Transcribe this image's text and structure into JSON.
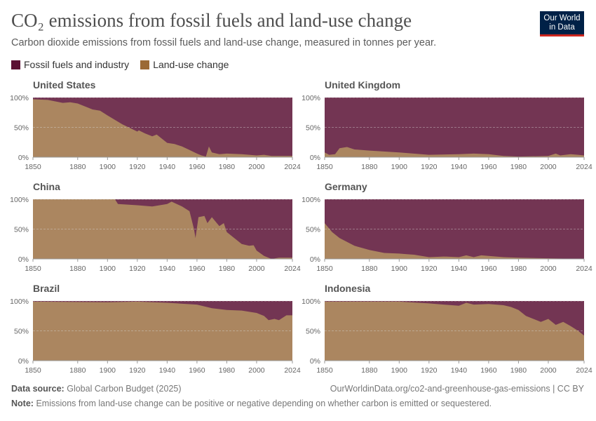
{
  "header": {
    "title": "CO₂ emissions from fossil fuels and land-use change",
    "subtitle": "Carbon dioxide emissions from fossil fuels and land-use change, measured in tonnes per year.",
    "logo": "Our World in Data"
  },
  "footer": {
    "source_label": "Data source:",
    "source": "Global Carbon Budget (2025)",
    "url": "OurWorldinData.org/co2-and-greenhouse-gas-emissions | CC BY",
    "note_label": "Note:",
    "note": "Emissions from land-use change can be positive or negative depending on whether carbon is emitted or sequestered."
  },
  "chart_data": {
    "type": "area",
    "stacked": "percent",
    "xlim": [
      1850,
      2024
    ],
    "ylim": [
      0,
      100
    ],
    "x_ticks": [
      "1850",
      "1880",
      "1900",
      "1920",
      "1940",
      "1960",
      "1980",
      "2000",
      "2024"
    ],
    "y_ticks": [
      "0%",
      "50%",
      "100%"
    ],
    "legend": [
      {
        "name": "Fossil fuels and industry",
        "color": "#5b1033",
        "area_color": "#733553"
      },
      {
        "name": "Land-use change",
        "color": "#9b6a35",
        "area_color": "#ab8660"
      }
    ],
    "legend_placement": "top-left",
    "grid": true,
    "note": "values are land-use change share (%); fossil fuels share is the remainder",
    "panels": [
      {
        "country": "United States",
        "land_use_share": [
          [
            1850,
            97
          ],
          [
            1860,
            96
          ],
          [
            1870,
            91
          ],
          [
            1875,
            92
          ],
          [
            1880,
            90
          ],
          [
            1890,
            80
          ],
          [
            1895,
            78
          ],
          [
            1900,
            70
          ],
          [
            1910,
            55
          ],
          [
            1920,
            43
          ],
          [
            1921,
            45
          ],
          [
            1925,
            40
          ],
          [
            1930,
            35
          ],
          [
            1933,
            38
          ],
          [
            1940,
            24
          ],
          [
            1945,
            22
          ],
          [
            1950,
            18
          ],
          [
            1955,
            12
          ],
          [
            1960,
            6
          ],
          [
            1963,
            3
          ],
          [
            1966,
            1
          ],
          [
            1968,
            18
          ],
          [
            1970,
            8
          ],
          [
            1975,
            5
          ],
          [
            1980,
            6
          ],
          [
            1990,
            5
          ],
          [
            2000,
            3
          ],
          [
            2005,
            4
          ],
          [
            2010,
            2
          ],
          [
            2024,
            2
          ]
        ]
      },
      {
        "country": "United Kingdom",
        "land_use_share": [
          [
            1850,
            8
          ],
          [
            1853,
            4
          ],
          [
            1857,
            5
          ],
          [
            1860,
            15
          ],
          [
            1865,
            17
          ],
          [
            1870,
            13
          ],
          [
            1880,
            11
          ],
          [
            1900,
            8
          ],
          [
            1920,
            4
          ],
          [
            1940,
            5
          ],
          [
            1950,
            6
          ],
          [
            1960,
            5
          ],
          [
            1970,
            2
          ],
          [
            1980,
            1
          ],
          [
            2000,
            2
          ],
          [
            2005,
            6
          ],
          [
            2008,
            3
          ],
          [
            2015,
            5
          ],
          [
            2020,
            4
          ],
          [
            2024,
            3
          ]
        ]
      },
      {
        "country": "China",
        "land_use_share": [
          [
            1850,
            100
          ],
          [
            1905,
            100
          ],
          [
            1907,
            92
          ],
          [
            1920,
            90
          ],
          [
            1930,
            88
          ],
          [
            1940,
            92
          ],
          [
            1943,
            96
          ],
          [
            1950,
            88
          ],
          [
            1955,
            80
          ],
          [
            1958,
            50
          ],
          [
            1959,
            35
          ],
          [
            1961,
            70
          ],
          [
            1965,
            72
          ],
          [
            1967,
            60
          ],
          [
            1970,
            70
          ],
          [
            1975,
            55
          ],
          [
            1978,
            60
          ],
          [
            1980,
            45
          ],
          [
            1985,
            35
          ],
          [
            1990,
            25
          ],
          [
            1995,
            22
          ],
          [
            1998,
            23
          ],
          [
            2000,
            14
          ],
          [
            2005,
            5
          ],
          [
            2010,
            0
          ],
          [
            2015,
            2
          ],
          [
            2024,
            2
          ]
        ]
      },
      {
        "country": "Germany",
        "land_use_share": [
          [
            1850,
            60
          ],
          [
            1855,
            45
          ],
          [
            1860,
            35
          ],
          [
            1870,
            22
          ],
          [
            1880,
            15
          ],
          [
            1890,
            10
          ],
          [
            1900,
            9
          ],
          [
            1905,
            8
          ],
          [
            1910,
            7
          ],
          [
            1920,
            3
          ],
          [
            1930,
            4
          ],
          [
            1940,
            3
          ],
          [
            1945,
            6
          ],
          [
            1950,
            3
          ],
          [
            1955,
            6
          ],
          [
            1960,
            5
          ],
          [
            1970,
            3
          ],
          [
            1980,
            2
          ],
          [
            2000,
            1
          ],
          [
            2024,
            0
          ]
        ]
      },
      {
        "country": "Brazil",
        "land_use_share": [
          [
            1850,
            99
          ],
          [
            1900,
            98
          ],
          [
            1920,
            99
          ],
          [
            1940,
            97
          ],
          [
            1960,
            94
          ],
          [
            1970,
            88
          ],
          [
            1980,
            85
          ],
          [
            1990,
            84
          ],
          [
            2000,
            80
          ],
          [
            2005,
            75
          ],
          [
            2008,
            68
          ],
          [
            2012,
            70
          ],
          [
            2015,
            68
          ],
          [
            2020,
            76
          ],
          [
            2024,
            76
          ]
        ]
      },
      {
        "country": "Indonesia",
        "land_use_share": [
          [
            1850,
            99
          ],
          [
            1900,
            99
          ],
          [
            1920,
            96
          ],
          [
            1940,
            92
          ],
          [
            1945,
            97
          ],
          [
            1950,
            94
          ],
          [
            1960,
            95
          ],
          [
            1970,
            93
          ],
          [
            1975,
            90
          ],
          [
            1980,
            85
          ],
          [
            1985,
            75
          ],
          [
            1990,
            70
          ],
          [
            1995,
            65
          ],
          [
            2000,
            70
          ],
          [
            2005,
            60
          ],
          [
            2010,
            65
          ],
          [
            2015,
            58
          ],
          [
            2020,
            50
          ],
          [
            2024,
            42
          ]
        ]
      }
    ]
  }
}
